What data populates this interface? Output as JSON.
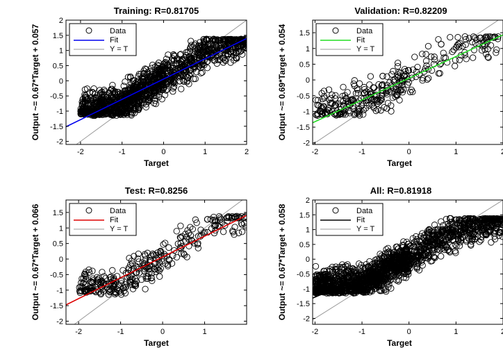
{
  "chart_data": [
    {
      "type": "scatter",
      "title": "Training: R=0.81705",
      "xlabel": "Target",
      "ylabel": "Output ~= 0.67*Target + 0.057",
      "xlim": [
        -2.35,
        2.0
      ],
      "ylim": [
        -2.1,
        2.0
      ],
      "xticks": [
        -2,
        -1,
        0,
        1,
        2
      ],
      "yticks": [
        -2,
        -1.5,
        -1,
        -0.5,
        0,
        0.5,
        1,
        1.5,
        2
      ],
      "fit": {
        "slope": 0.67,
        "intercept": 0.057,
        "color": "#0000ee"
      },
      "identity_color": "#9a9a9a",
      "legend": [
        "Data",
        "Fit",
        "Y = T"
      ],
      "legend_position": "top-left",
      "density": 1400,
      "seed": 11,
      "series": [
        {
          "name": "Data",
          "values": [
            [
              -2.0,
              -1.0
            ],
            [
              -1.5,
              -0.9
            ],
            [
              -1.0,
              -0.8
            ],
            [
              -0.5,
              -0.3
            ],
            [
              0,
              0.1
            ],
            [
              0.5,
              0.5
            ],
            [
              1.0,
              0.9
            ],
            [
              1.5,
              1.2
            ],
            [
              2.0,
              1.35
            ]
          ]
        }
      ]
    },
    {
      "type": "scatter",
      "title": "Validation: R=0.82209",
      "xlabel": "Target",
      "ylabel": "Output ~= 0.69*Target + 0.054",
      "xlim": [
        -2.05,
        2.0
      ],
      "ylim": [
        -2.05,
        1.9
      ],
      "xticks": [
        -2,
        -1,
        0,
        1,
        2
      ],
      "yticks": [
        -2,
        -1.5,
        -1,
        -0.5,
        0,
        0.5,
        1,
        1.5
      ],
      "fit": {
        "slope": 0.69,
        "intercept": 0.054,
        "color": "#22dd22"
      },
      "identity_color": "#9a9a9a",
      "legend": [
        "Data",
        "Fit",
        "Y = T"
      ],
      "legend_position": "top-left",
      "density": 330,
      "seed": 23,
      "series": [
        {
          "name": "Data",
          "values": [
            [
              -2.0,
              -0.95
            ],
            [
              -1.0,
              -0.75
            ],
            [
              0,
              0.05
            ],
            [
              0.5,
              0.6
            ],
            [
              1.0,
              1.0
            ],
            [
              1.5,
              1.3
            ],
            [
              2.0,
              1.35
            ]
          ]
        }
      ]
    },
    {
      "type": "scatter",
      "title": "Test: R=0.8256",
      "xlabel": "Target",
      "ylabel": "Output ~= 0.67*Target + 0.066",
      "xlim": [
        -2.3,
        2.0
      ],
      "ylim": [
        -2.1,
        1.9
      ],
      "xticks": [
        -2,
        -1,
        0,
        1
      ],
      "yticks": [
        -2,
        -1.5,
        -1,
        -0.5,
        0,
        0.5,
        1,
        1.5
      ],
      "fit": {
        "slope": 0.67,
        "intercept": 0.066,
        "color": "#dd0000"
      },
      "identity_color": "#9a9a9a",
      "legend": [
        "Data",
        "Fit",
        "Y = T"
      ],
      "legend_position": "top-left",
      "density": 330,
      "seed": 37,
      "series": [
        {
          "name": "Data",
          "values": [
            [
              -2.0,
              -0.95
            ],
            [
              -1.0,
              -0.8
            ],
            [
              0,
              0.05
            ],
            [
              0.5,
              0.55
            ],
            [
              1.0,
              0.95
            ],
            [
              1.5,
              1.3
            ],
            [
              2.0,
              1.35
            ]
          ]
        }
      ]
    },
    {
      "type": "scatter",
      "title": "All: R=0.81918",
      "xlabel": "Target",
      "ylabel": "Output ~= 0.67*Target + 0.058",
      "xlim": [
        -2.05,
        2.0
      ],
      "ylim": [
        -2.2,
        2.0
      ],
      "xticks": [
        -2,
        -1,
        0,
        1,
        2
      ],
      "yticks": [
        -2,
        -1.5,
        -1,
        -0.5,
        0,
        0.5,
        1,
        1.5,
        2
      ],
      "fit": {
        "slope": 0.67,
        "intercept": 0.058,
        "color": "#000000"
      },
      "identity_color": "#9a9a9a",
      "legend": [
        "Data",
        "Fit",
        "Y = T"
      ],
      "legend_position": "top-left",
      "density": 1800,
      "seed": 51,
      "series": [
        {
          "name": "Data",
          "values": [
            [
              -2.0,
              -1.0
            ],
            [
              -1.0,
              -0.8
            ],
            [
              0,
              0.05
            ],
            [
              1.0,
              0.95
            ],
            [
              2.0,
              1.35
            ]
          ]
        }
      ]
    }
  ]
}
